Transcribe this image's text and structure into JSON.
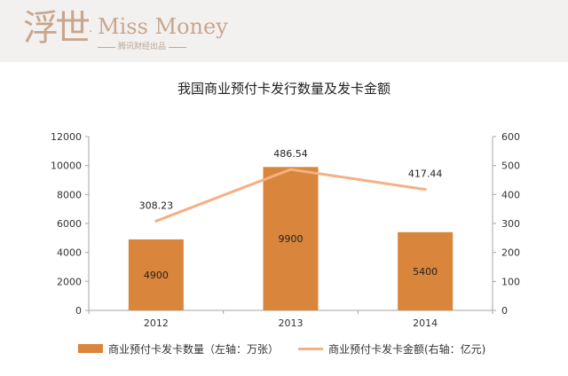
{
  "brand": {
    "logo_cn": "浮世",
    "logo_dot": "·",
    "logo_en": "Miss Money",
    "logo_sub": "腾讯财经出品"
  },
  "chart_data": {
    "type": "bar",
    "title": "我国商业预付卡发行数量及发卡金额",
    "categories": [
      "2012",
      "2013",
      "2014"
    ],
    "left_axis": {
      "min": 0,
      "max": 12000,
      "ticks": [
        0,
        2000,
        4000,
        6000,
        8000,
        10000,
        12000
      ]
    },
    "right_axis": {
      "min": 0,
      "max": 600,
      "ticks": [
        0,
        100,
        200,
        300,
        400,
        500,
        600
      ]
    },
    "series": [
      {
        "name": "商业预付卡发卡数量（左轴：万张）",
        "type": "bar",
        "axis": "left",
        "values": [
          4900,
          9900,
          5400
        ],
        "labels": [
          "4900",
          "9900",
          "5400"
        ],
        "color": "#d9853b"
      },
      {
        "name": "商业预付卡发卡金额(右轴：亿元)",
        "type": "line",
        "axis": "right",
        "values": [
          308.23,
          486.54,
          417.44
        ],
        "labels": [
          "308.23",
          "486.54",
          "417.44"
        ],
        "color": "#f4b183"
      }
    ],
    "grid": false,
    "legend_position": "bottom"
  }
}
